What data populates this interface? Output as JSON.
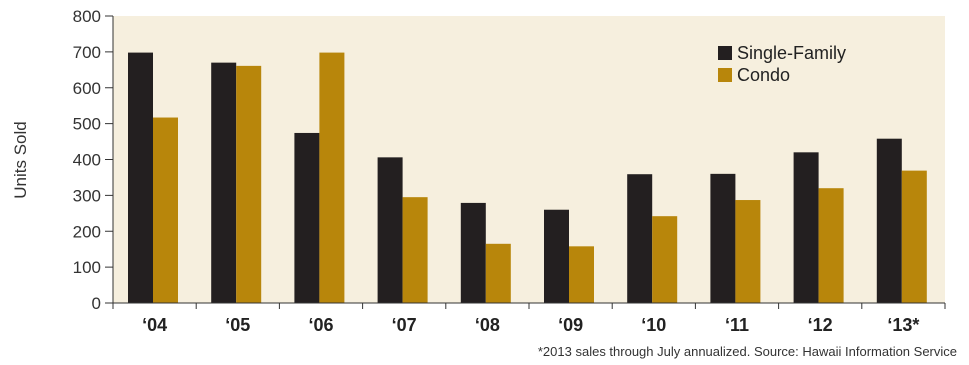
{
  "chart_data": {
    "type": "bar",
    "categories": [
      "‘04",
      "‘05",
      "‘06",
      "‘07",
      "‘08",
      "‘09",
      "‘10",
      "‘11",
      "‘12",
      "‘13*"
    ],
    "series": [
      {
        "name": "Single-Family",
        "color": "#231f20",
        "values": [
          698,
          670,
          474,
          406,
          279,
          260,
          359,
          360,
          420,
          458
        ]
      },
      {
        "name": "Condo",
        "color": "#b8860b",
        "values": [
          517,
          661,
          698,
          295,
          165,
          158,
          242,
          287,
          320,
          369
        ]
      }
    ],
    "ylabel": "Units Sold",
    "xlabel": "",
    "ylim": [
      0,
      800
    ],
    "yticks": [
      0,
      100,
      200,
      300,
      400,
      500,
      600,
      700,
      800
    ],
    "legend_position": "top-right",
    "background_color": "#f6efde",
    "footnote": "*2013 sales through July annualized.  Source: Hawaii Information Service"
  }
}
